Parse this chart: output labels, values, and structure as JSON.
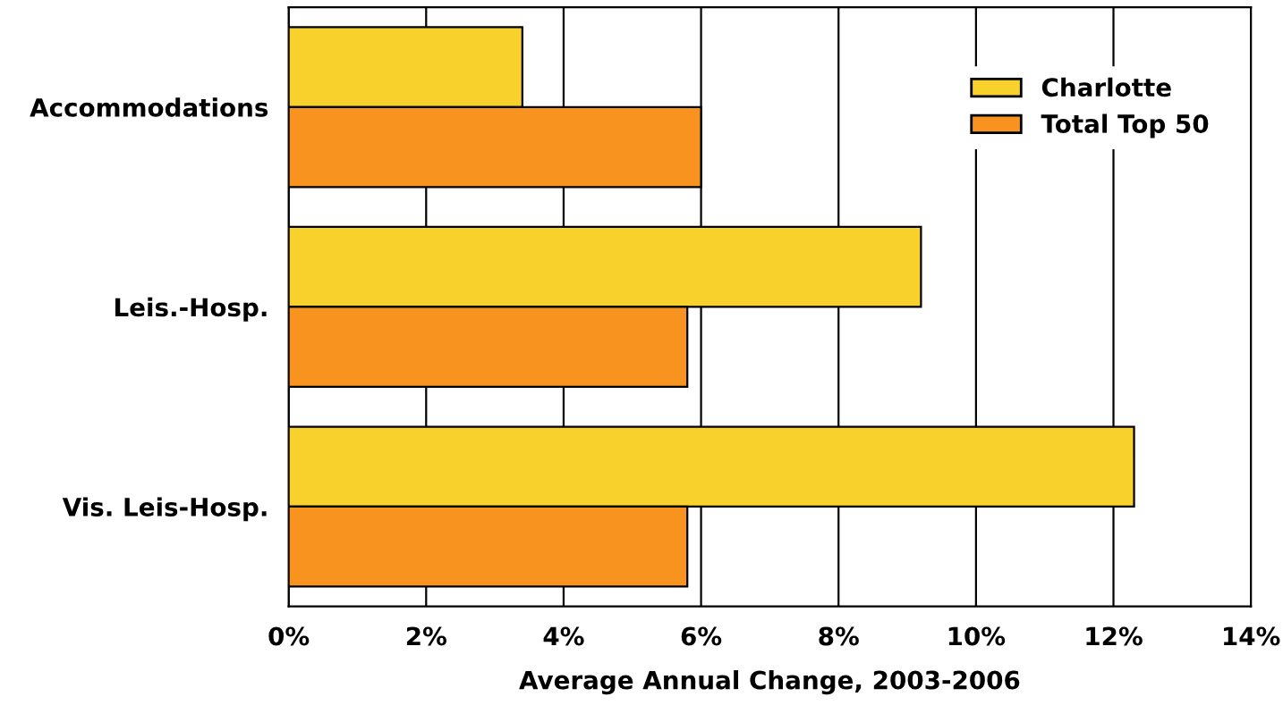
{
  "chart_data": {
    "type": "bar",
    "orientation": "horizontal",
    "xlabel": "Average Annual Change, 2003-2006",
    "categories": [
      "Accommodations",
      "Leis.-Hosp.",
      "Vis. Leis-Hosp."
    ],
    "series": [
      {
        "name": "Charlotte",
        "color": "#f9d12c",
        "values": [
          3.4,
          9.2,
          12.3
        ]
      },
      {
        "name": "Total Top 50",
        "color": "#f7931e",
        "values": [
          6.0,
          5.8,
          5.8
        ]
      }
    ],
    "xlim": [
      0,
      14
    ],
    "xticks": [
      {
        "value": 0,
        "label": "0%"
      },
      {
        "value": 2,
        "label": "2%"
      },
      {
        "value": 4,
        "label": "4%"
      },
      {
        "value": 6,
        "label": "6%"
      },
      {
        "value": 8,
        "label": "8%"
      },
      {
        "value": 10,
        "label": "10%"
      },
      {
        "value": 12,
        "label": "12%"
      },
      {
        "value": 14,
        "label": "14%"
      }
    ],
    "grid": "x",
    "legend": "top right"
  }
}
